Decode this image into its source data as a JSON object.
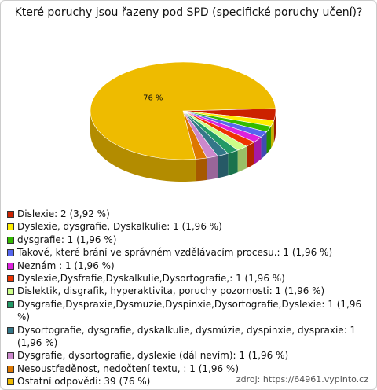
{
  "chart_data": {
    "type": "pie3d",
    "title": "Které poruchy jsou řazeny pod SPD (specifické poruchy učení)?",
    "categories": [
      "Dislexie: 2 (3,92 %)",
      "Dyslexie, dysgrafie, Dyskalkulie: 1 (1,96 %)",
      "dysgrafie: 1 (1,96 %)",
      "Takové, které brání ve správném vzdělávacím procesu.: 1 (1,96 %)",
      "Neznám : 1 (1,96 %)",
      "Dyslexie,Dysfrafie,Dyskalkulie,Dysortografie,: 1 (1,96 %)",
      "Dislektik, disgrafik, hyperaktivita, poruchy pozornosti: 1 (1,96 %)",
      "Dysgrafie,Dyspraxie,Dysmuzie,Dyspinxie,Dysortografie,Dyslexie: 1 (1,96 %)",
      "Dysortografie, dysgrafie, dyskalkulie, dysmúzie, dyspinxie, dyspraxie: 1 (1,96 %)",
      "Dysgrafie, dysortografie, dyslexie (dál nevím): 1 (1,96 %)",
      "Nesoustředěnost, nedočtení textu, : 1 (1,96 %)",
      "Ostatní odpovědi: 39 (76 %)"
    ],
    "values": [
      3.92,
      1.96,
      1.96,
      1.96,
      1.96,
      1.96,
      1.96,
      1.96,
      1.96,
      1.96,
      1.96,
      76
    ],
    "value_labels": [
      null,
      null,
      null,
      null,
      null,
      null,
      null,
      null,
      null,
      null,
      null,
      "76 %"
    ],
    "colors": [
      "#cc2200",
      "#ffee00",
      "#33bb00",
      "#5566ee",
      "#dd22dd",
      "#ee3300",
      "#ccff88",
      "#229966",
      "#337788",
      "#cc88cc",
      "#dd7700",
      "#eebb00"
    ],
    "source": "zdroj: https://64961.vyplnto.cz"
  }
}
